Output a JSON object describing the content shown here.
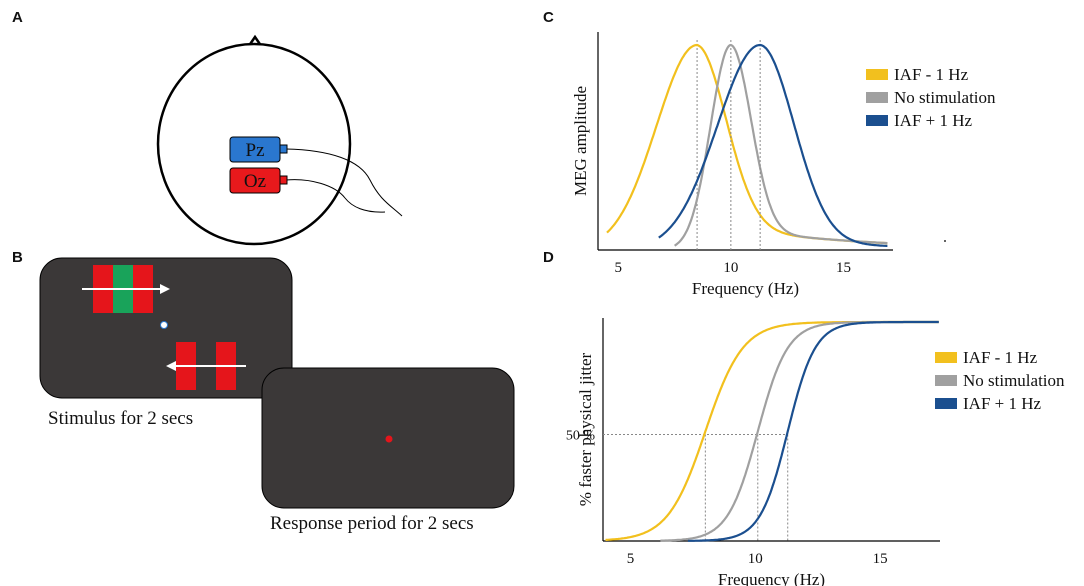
{
  "panel_labels": [
    "A",
    "B",
    "C",
    "D"
  ],
  "head": {
    "electrodes": [
      "Pz",
      "Oz"
    ]
  },
  "task": {
    "stimulus_caption": "Stimulus for 2 secs",
    "response_caption": "Response period for 2 secs"
  },
  "chart_c": {
    "type": "line",
    "xlabel": "Frequency (Hz)",
    "ylabel": "MEG amplitude",
    "xlim": [
      4.1,
      17.2
    ],
    "xticks": [
      5,
      10,
      15
    ],
    "series": [
      {
        "name": "IAF - 1 Hz",
        "color": "#f2c01e",
        "peak": 8.5
      },
      {
        "name": "No stimulation",
        "color": "#a0a0a0",
        "peak": 10
      },
      {
        "name": "IAF + 1 Hz",
        "color": "#1b4f8f",
        "peak": 11.3
      }
    ]
  },
  "chart_d": {
    "type": "line",
    "xlabel": "Frequency (Hz)",
    "ylabel": "% faster physical jitter",
    "xlim": [
      3.9,
      17.4
    ],
    "xticks": [
      5,
      10,
      15
    ],
    "ylim": [
      0,
      100
    ],
    "yticks": [
      {
        "value": 50,
        "label": "50 %"
      }
    ],
    "series": [
      {
        "name": "IAF - 1 Hz",
        "color": "#f2c01e",
        "threshold": 8
      },
      {
        "name": "No stimulation",
        "color": "#a0a0a0",
        "threshold": 10.1
      },
      {
        "name": "IAF + 1 Hz",
        "color": "#1b4f8f",
        "threshold": 11.3
      }
    ]
  }
}
